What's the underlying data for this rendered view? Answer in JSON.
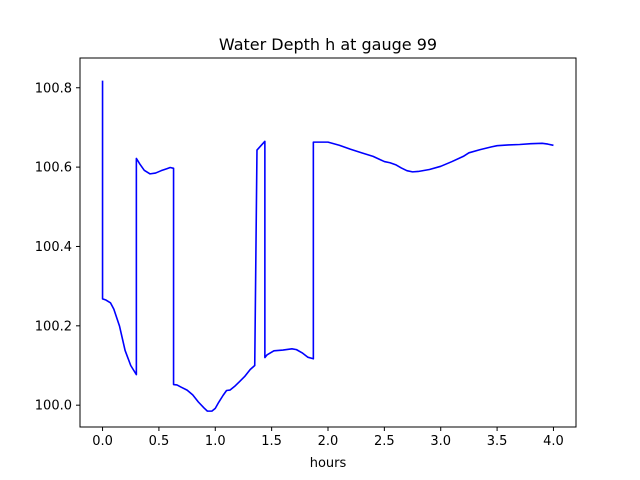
{
  "chart_data": {
    "type": "line",
    "title": "Water Depth h at gauge 99",
    "xlabel": "hours",
    "ylabel": "",
    "xlim": [
      -0.2,
      4.2
    ],
    "ylim": [
      99.945,
      100.875
    ],
    "xticks": [
      0.0,
      0.5,
      1.0,
      1.5,
      2.0,
      2.5,
      3.0,
      3.5,
      4.0
    ],
    "xtick_labels": [
      "0.0",
      "0.5",
      "1.0",
      "1.5",
      "2.0",
      "2.5",
      "3.0",
      "3.5",
      "4.0"
    ],
    "yticks": [
      100.0,
      100.2,
      100.4,
      100.6,
      100.8
    ],
    "ytick_labels": [
      "100.0",
      "100.2",
      "100.4",
      "100.6",
      "100.8"
    ],
    "grid": false,
    "series": [
      {
        "color": "#0000ff",
        "x": [
          0.0,
          0.0,
          0.03,
          0.07,
          0.1,
          0.15,
          0.2,
          0.25,
          0.3,
          0.3,
          0.33,
          0.37,
          0.42,
          0.47,
          0.52,
          0.57,
          0.6,
          0.63,
          0.63,
          0.66,
          0.7,
          0.75,
          0.8,
          0.85,
          0.9,
          0.93,
          0.97,
          1.0,
          1.03,
          1.07,
          1.1,
          1.13,
          1.17,
          1.21,
          1.26,
          1.31,
          1.35,
          1.37,
          1.37,
          1.44,
          1.44,
          1.46,
          1.52,
          1.6,
          1.68,
          1.72,
          1.77,
          1.82,
          1.87,
          1.87,
          2.0,
          2.1,
          2.2,
          2.3,
          2.4,
          2.5,
          2.55,
          2.6,
          2.65,
          2.7,
          2.75,
          2.8,
          2.9,
          3.0,
          3.1,
          3.2,
          3.25,
          3.35,
          3.45,
          3.5,
          3.6,
          3.7,
          3.8,
          3.9,
          3.95,
          4.0
        ],
        "y": [
          100.818,
          100.268,
          100.265,
          100.258,
          100.242,
          100.2,
          100.138,
          100.1,
          100.077,
          100.622,
          100.608,
          100.592,
          100.583,
          100.585,
          100.591,
          100.596,
          100.599,
          100.597,
          100.052,
          100.051,
          100.045,
          100.038,
          100.026,
          100.008,
          99.993,
          99.985,
          99.985,
          99.992,
          100.007,
          100.025,
          100.037,
          100.038,
          100.047,
          100.058,
          100.072,
          100.09,
          100.1,
          100.643,
          100.643,
          100.665,
          100.12,
          100.127,
          100.137,
          100.139,
          100.142,
          100.14,
          100.132,
          100.121,
          100.117,
          100.663,
          100.663,
          100.655,
          100.645,
          100.636,
          100.627,
          100.614,
          100.611,
          100.606,
          100.598,
          100.591,
          100.588,
          100.589,
          100.594,
          100.602,
          100.614,
          100.627,
          100.636,
          100.644,
          100.651,
          100.654,
          100.656,
          100.657,
          100.659,
          100.66,
          100.658,
          100.655
        ]
      }
    ]
  }
}
